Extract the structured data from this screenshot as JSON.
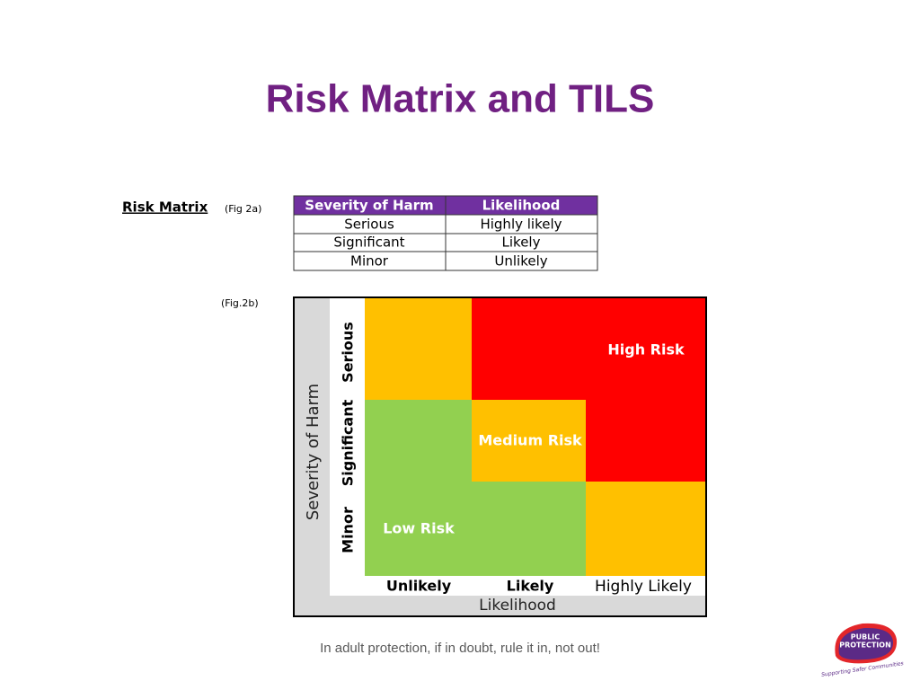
{
  "title": "Risk Matrix and TILS",
  "figure_a": {
    "heading": "Risk Matrix",
    "label": "(Fig 2a)",
    "table": {
      "headers": [
        "Severity of Harm",
        "Likelihood"
      ],
      "rows": [
        [
          "Serious",
          "Highly likely"
        ],
        [
          "Significant",
          "Likely"
        ],
        [
          "Minor",
          "Unlikely"
        ]
      ]
    }
  },
  "figure_b": {
    "label": "(Fig.2b)",
    "y_axis": "Severity of Harm",
    "x_axis": "Likelihood",
    "rows": [
      "Serious",
      "Significant",
      "Minor"
    ],
    "columns": [
      "Unlikely",
      "Likely",
      "Highly Likely"
    ],
    "zones": {
      "high": "High Risk",
      "medium": "Medium Risk",
      "low": "Low Risk"
    }
  },
  "footer": "In adult protection, if in doubt, rule it in, not out!",
  "logo": {
    "name": [
      "PUBLIC",
      "PROTECTION"
    ],
    "tagline": "Supporting Safer Communities"
  }
}
